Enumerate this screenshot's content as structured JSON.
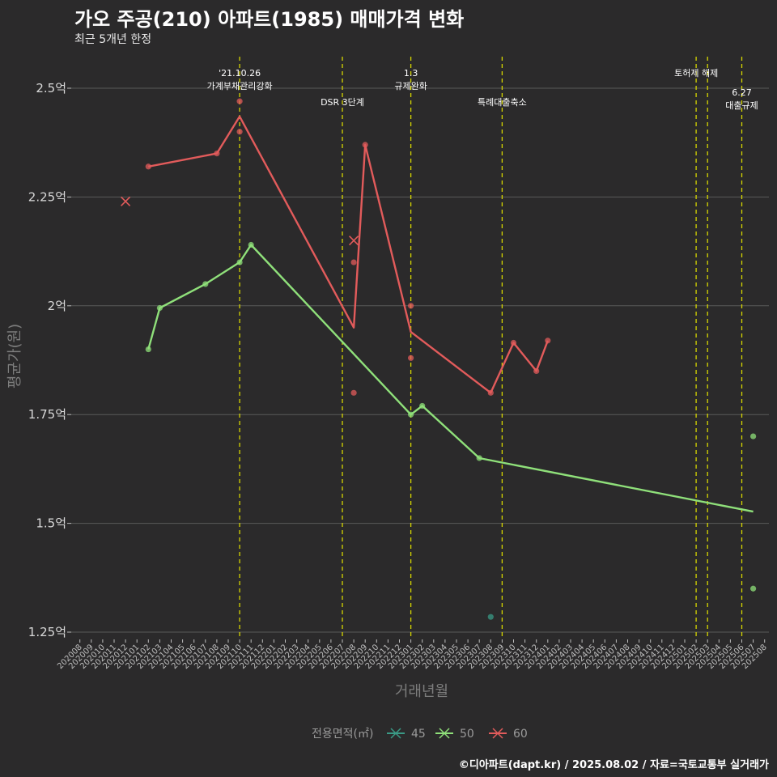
{
  "title": "가오 주공(210) 아파트(1985) 매매가격 변화",
  "subtitle": "최근 5개년 한정",
  "caption": "©디아파트(dapt.kr) / 2025.08.02 / 자료=국토교통부 실거래가",
  "colors": {
    "background": "#2b2a2b",
    "grid": "#5a5a5a",
    "vline": "#d6d600",
    "s45": "#3a9a86",
    "s50": "#8fe07a",
    "s60": "#e25b5b"
  },
  "chart_data": {
    "type": "line",
    "title": "가오 주공(210) 아파트(1985) 매매가격 변화",
    "xlabel": "거래년월",
    "ylabel": "평균가(원)",
    "ylim": [
      1.2,
      2.55
    ],
    "yticks": [
      {
        "v": 1.25,
        "label": "1.25억"
      },
      {
        "v": 1.5,
        "label": "1.5억"
      },
      {
        "v": 1.75,
        "label": "1.75억"
      },
      {
        "v": 2.0,
        "label": "2억"
      },
      {
        "v": 2.25,
        "label": "2.25억"
      },
      {
        "v": 2.5,
        "label": "2.5억"
      }
    ],
    "x_categories": [
      "202008",
      "202009",
      "202010",
      "202011",
      "202012",
      "202101",
      "202102",
      "202103",
      "202104",
      "202105",
      "202106",
      "202107",
      "202108",
      "202109",
      "202110",
      "202111",
      "202112",
      "202201",
      "202202",
      "202203",
      "202204",
      "202205",
      "202206",
      "202207",
      "202208",
      "202209",
      "202210",
      "202211",
      "202212",
      "202301",
      "202302",
      "202303",
      "202304",
      "202305",
      "202306",
      "202307",
      "202308",
      "202309",
      "202310",
      "202311",
      "202312",
      "202401",
      "202402",
      "202403",
      "202404",
      "202405",
      "202406",
      "202407",
      "202408",
      "202409",
      "202410",
      "202411",
      "202412",
      "202501",
      "202502",
      "202503",
      "202504",
      "202505",
      "202506",
      "202507",
      "202508"
    ],
    "grid": true,
    "legend_title": "전용면적(㎡)",
    "legend_position": "bottom",
    "series": [
      {
        "name": "45",
        "color": "#3a9a86",
        "line": [],
        "points": [
          [
            "202308",
            1.285
          ]
        ],
        "cross": []
      },
      {
        "name": "50",
        "color": "#8fe07a",
        "line": [
          [
            "202102",
            1.9
          ],
          [
            "202103",
            1.995
          ],
          [
            "202107",
            2.05
          ],
          [
            "202110",
            2.1
          ],
          [
            "202111",
            2.14
          ],
          [
            "202301",
            1.75
          ],
          [
            "202302",
            1.77
          ],
          [
            "202307",
            1.65
          ],
          [
            "202507",
            1.527
          ]
        ],
        "points": [
          [
            "202102",
            1.9
          ],
          [
            "202103",
            1.995
          ],
          [
            "202107",
            2.05
          ],
          [
            "202110",
            2.1
          ],
          [
            "202111",
            2.14
          ],
          [
            "202301",
            1.75
          ],
          [
            "202302",
            1.77
          ],
          [
            "202307",
            1.65
          ],
          [
            "202507",
            1.7
          ],
          [
            "202507",
            1.35
          ]
        ],
        "cross": []
      },
      {
        "name": "60",
        "color": "#e25b5b",
        "line": [
          [
            "202102",
            2.32
          ],
          [
            "202108",
            2.35
          ],
          [
            "202110",
            2.435
          ],
          [
            "202208",
            1.95
          ],
          [
            "202209",
            2.37
          ],
          [
            "202301",
            1.94
          ],
          [
            "202308",
            1.8
          ],
          [
            "202310",
            1.915
          ],
          [
            "202312",
            1.85
          ],
          [
            "202401",
            1.92
          ]
        ],
        "points": [
          [
            "202102",
            2.32
          ],
          [
            "202108",
            2.35
          ],
          [
            "202110",
            2.47
          ],
          [
            "202110",
            2.4
          ],
          [
            "202208",
            2.1
          ],
          [
            "202208",
            1.8
          ],
          [
            "202209",
            2.37
          ],
          [
            "202301",
            2.0
          ],
          [
            "202301",
            1.88
          ],
          [
            "202308",
            1.8
          ],
          [
            "202310",
            1.915
          ],
          [
            "202312",
            1.85
          ],
          [
            "202401",
            1.92
          ]
        ],
        "cross": [
          [
            "202012",
            2.24
          ],
          [
            "202208",
            2.15
          ]
        ]
      }
    ],
    "events": [
      {
        "x": "202110",
        "lines": [
          "'21.10.26",
          "가계부채관리강화"
        ],
        "row": 0
      },
      {
        "x": "202207",
        "lines": [
          "DSR 3단계"
        ],
        "row": 1
      },
      {
        "x": "202301",
        "lines": [
          "1.3",
          "규제완화"
        ],
        "row": 0
      },
      {
        "x": "202309",
        "lines": [
          "특례대출축소"
        ],
        "row": 1
      },
      {
        "x": "202502",
        "lines": [],
        "row": 0
      },
      {
        "x": "202503",
        "lines": [
          "토허제 해제"
        ],
        "row": 0
      },
      {
        "x": "202506",
        "lines": [
          "6.27",
          "대출규제"
        ],
        "row": 1
      }
    ]
  }
}
